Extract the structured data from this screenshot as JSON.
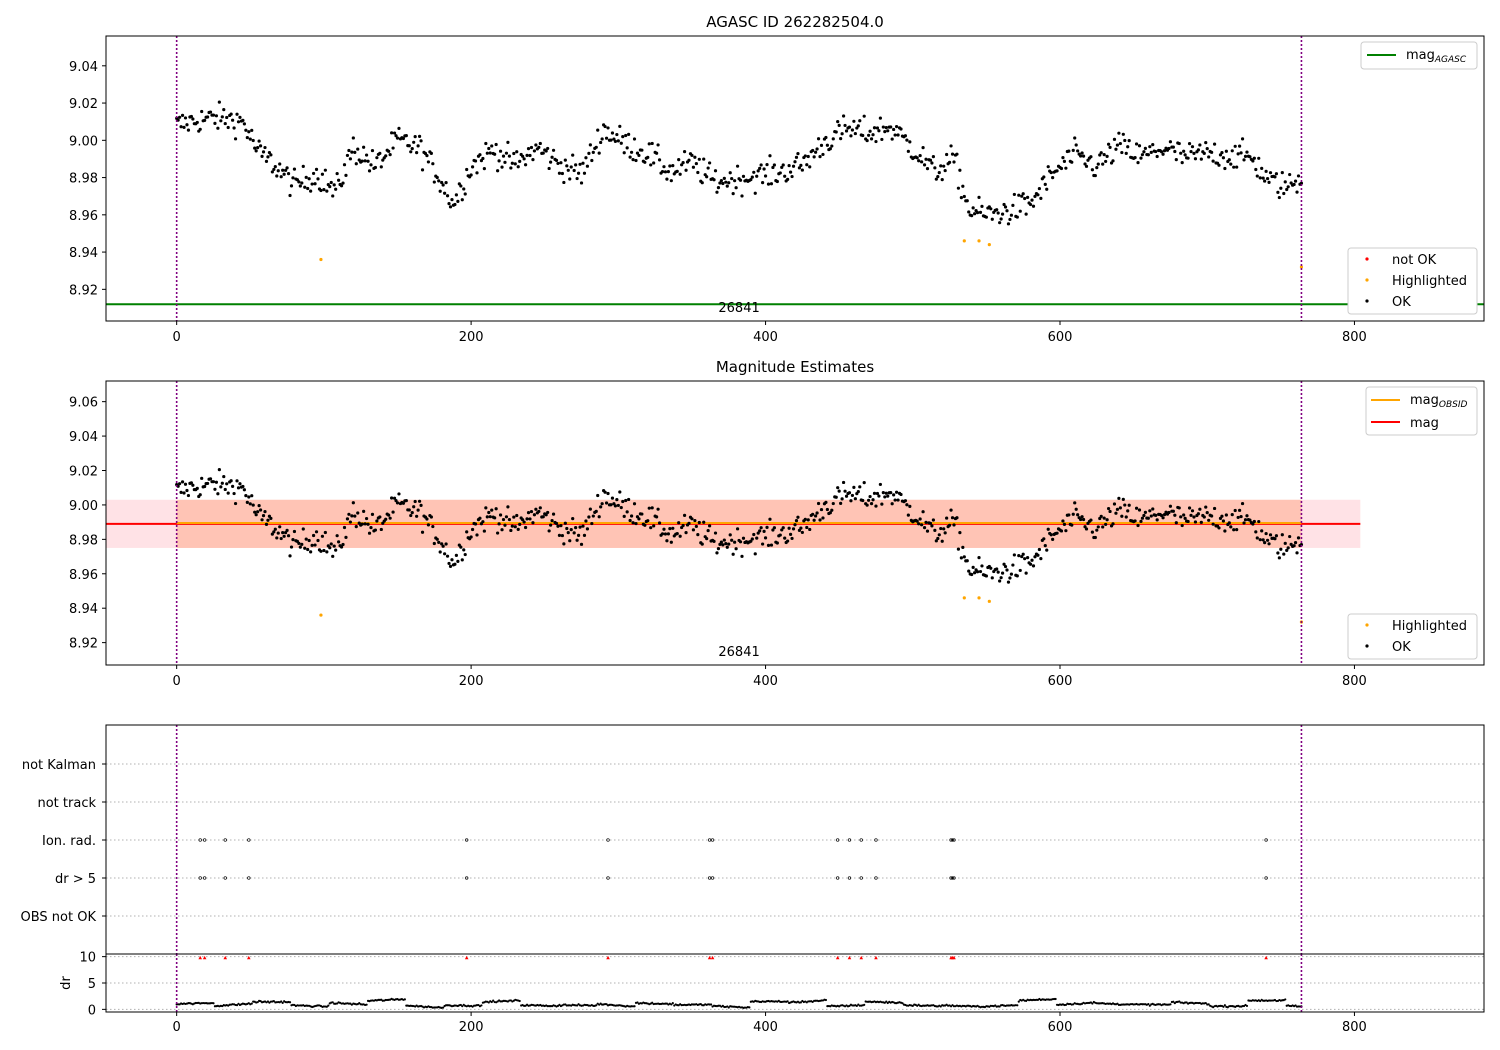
{
  "figure": {
    "title": "AGASC ID 262282504.0",
    "obsid_label": "26841"
  },
  "chart_data": [
    {
      "type": "scatter",
      "title": "AGASC ID 262282504.0",
      "xlim": [
        -48,
        888
      ],
      "ylim": [
        8.903,
        9.056
      ],
      "xticks": [
        "0",
        "200",
        "400",
        "600",
        "800"
      ],
      "yticks": [
        "8.92",
        "8.94",
        "8.96",
        "8.98",
        "9.00",
        "9.02",
        "9.04"
      ],
      "obsid_boundaries": [
        0,
        764
      ],
      "lines": [
        {
          "name": "mag_AGASC",
          "legend": "mag",
          "legend_sub": "AGASC",
          "y": 8.912,
          "color": "#008000"
        }
      ],
      "series": [
        {
          "name": "not OK",
          "color": "#ff0000",
          "points": []
        },
        {
          "name": "Highlighted",
          "color": "#ffa500",
          "points": [
            [
              98,
              8.936
            ],
            [
              535,
              8.946
            ],
            [
              545,
              8.946
            ],
            [
              552,
              8.944
            ],
            [
              764,
              8.932
            ]
          ]
        },
        {
          "name": "OK",
          "color": "#000000",
          "profile": "mag_profile"
        }
      ],
      "annotation": "26841",
      "legend_top": "top-right",
      "legend_bottom": "bottom-right"
    },
    {
      "type": "scatter",
      "title": "Magnitude Estimates",
      "xlim": [
        -48,
        888
      ],
      "ylim": [
        8.907,
        9.072
      ],
      "xticks": [
        "0",
        "200",
        "400",
        "600",
        "800"
      ],
      "yticks": [
        "8.92",
        "8.94",
        "8.96",
        "8.98",
        "9.00",
        "9.02",
        "9.04",
        "9.06"
      ],
      "obsid_boundaries": [
        0,
        764
      ],
      "mag": 8.989,
      "mag_band": [
        8.975,
        9.003
      ],
      "lines": [
        {
          "name": "mag_OBSID",
          "legend": "mag",
          "legend_sub": "OBSID",
          "y": 8.9895,
          "color": "#ffa500"
        },
        {
          "name": "mag",
          "legend": "mag",
          "y": 8.989,
          "color": "#ff0000"
        }
      ],
      "series": [
        {
          "name": "Highlighted",
          "color": "#ffa500",
          "points": [
            [
              98,
              8.936
            ],
            [
              535,
              8.946
            ],
            [
              545,
              8.946
            ],
            [
              552,
              8.944
            ],
            [
              764,
              8.932
            ]
          ]
        },
        {
          "name": "OK",
          "color": "#000000",
          "profile": "mag_profile"
        }
      ],
      "annotation": "26841"
    },
    {
      "type": "scatter",
      "title": "",
      "xlim": [
        -48,
        888
      ],
      "categories": [
        "not Kalman",
        "not track",
        "Ion. rad.",
        "dr > 5",
        "OBS not OK"
      ],
      "flag_frames": [
        16,
        19,
        33,
        49,
        197,
        293,
        362,
        364,
        449,
        457,
        465,
        475,
        526,
        527,
        528,
        740
      ]
    },
    {
      "type": "scatter",
      "title": "",
      "ylabel": "dr",
      "xlim": [
        -48,
        888
      ],
      "ylim": [
        -0.5,
        10.5
      ],
      "yticks": [
        "0",
        "5",
        "10"
      ],
      "xticks": [
        "0",
        "200",
        "400",
        "600",
        "800"
      ],
      "flag_frames_dr": [
        16,
        19,
        33,
        49,
        197,
        293,
        362,
        364,
        449,
        457,
        465,
        475,
        526,
        527,
        528,
        740
      ]
    }
  ],
  "mag_profile": [
    [
      0,
      9.008
    ],
    [
      15,
      9.011
    ],
    [
      30,
      9.012
    ],
    [
      45,
      9.01
    ],
    [
      55,
      8.994
    ],
    [
      65,
      8.988
    ],
    [
      80,
      8.976
    ],
    [
      95,
      8.982
    ],
    [
      108,
      8.972
    ],
    [
      120,
      8.996
    ],
    [
      135,
      8.986
    ],
    [
      150,
      9.0
    ],
    [
      165,
      8.996
    ],
    [
      180,
      8.978
    ],
    [
      188,
      8.966
    ],
    [
      200,
      8.986
    ],
    [
      215,
      8.995
    ],
    [
      230,
      8.987
    ],
    [
      245,
      8.996
    ],
    [
      260,
      8.987
    ],
    [
      275,
      8.982
    ],
    [
      290,
      9.006
    ],
    [
      305,
      8.998
    ],
    [
      320,
      8.993
    ],
    [
      335,
      8.983
    ],
    [
      350,
      8.988
    ],
    [
      365,
      8.978
    ],
    [
      380,
      8.979
    ],
    [
      395,
      8.981
    ],
    [
      410,
      8.983
    ],
    [
      425,
      8.987
    ],
    [
      440,
      8.999
    ],
    [
      455,
      9.006
    ],
    [
      470,
      9.004
    ],
    [
      485,
      9.007
    ],
    [
      500,
      8.996
    ],
    [
      515,
      8.983
    ],
    [
      528,
      8.99
    ],
    [
      538,
      8.963
    ],
    [
      550,
      8.96
    ],
    [
      565,
      8.962
    ],
    [
      580,
      8.966
    ],
    [
      595,
      8.982
    ],
    [
      610,
      8.992
    ],
    [
      625,
      8.986
    ],
    [
      640,
      8.997
    ],
    [
      655,
      8.991
    ],
    [
      670,
      8.996
    ],
    [
      685,
      8.991
    ],
    [
      700,
      8.993
    ],
    [
      715,
      8.992
    ],
    [
      730,
      8.991
    ],
    [
      742,
      8.978
    ],
    [
      755,
      8.975
    ],
    [
      764,
      8.98
    ]
  ],
  "legends": {
    "not_ok": "not OK",
    "highlighted": "Highlighted",
    "ok": "OK"
  }
}
